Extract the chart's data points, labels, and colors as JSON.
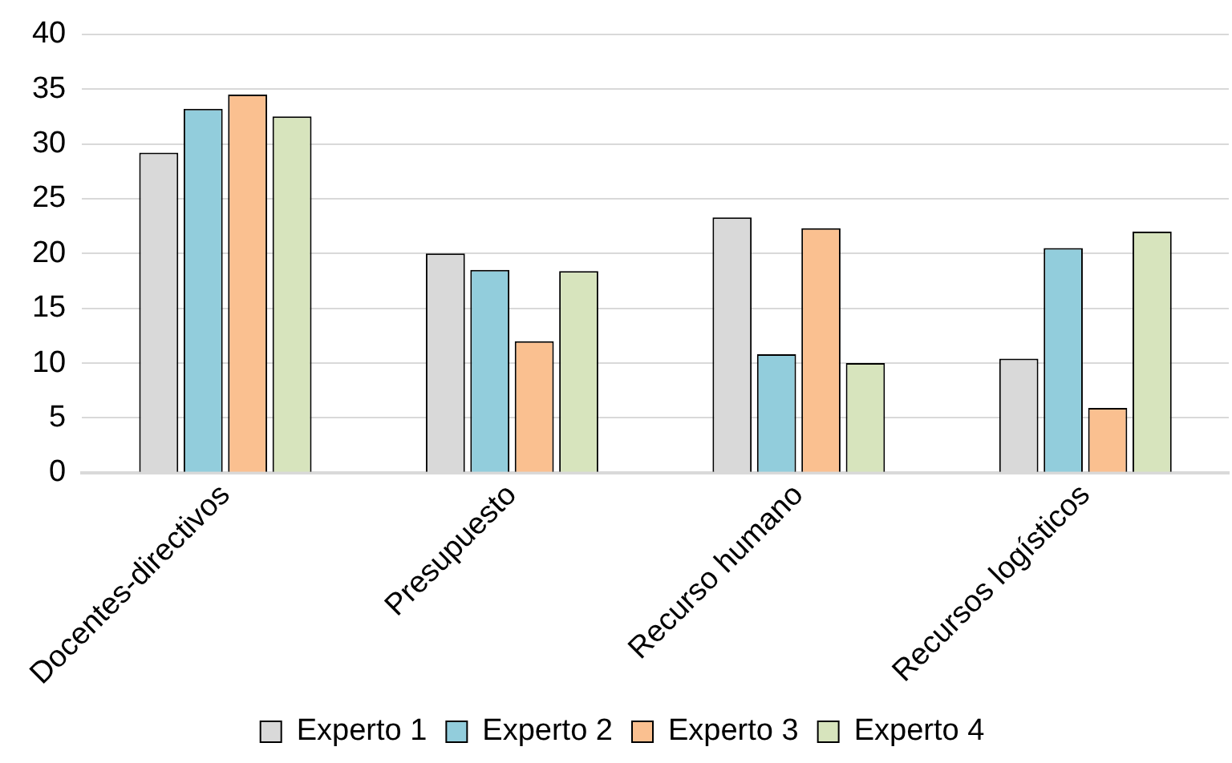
{
  "chart_data": {
    "type": "bar",
    "categories": [
      "Docentes-directivos",
      "Presupuesto",
      "Recurso humano",
      "Recursos logísticos"
    ],
    "series": [
      {
        "name": "Experto 1",
        "color": "#d9d9d9",
        "values": [
          29.2,
          20.0,
          23.3,
          10.4
        ]
      },
      {
        "name": "Experto 2",
        "color": "#92cddc",
        "values": [
          33.2,
          18.5,
          10.8,
          20.5
        ]
      },
      {
        "name": "Experto 3",
        "color": "#fac090",
        "values": [
          34.5,
          12.0,
          22.3,
          5.9
        ]
      },
      {
        "name": "Experto 4",
        "color": "#d7e4bd",
        "values": [
          32.5,
          18.4,
          10.0,
          22.0
        ]
      }
    ],
    "ylim": [
      0,
      40
    ],
    "yticks": [
      0,
      5,
      10,
      15,
      20,
      25,
      30,
      35,
      40
    ],
    "grid": "y",
    "legend": "bottom"
  }
}
